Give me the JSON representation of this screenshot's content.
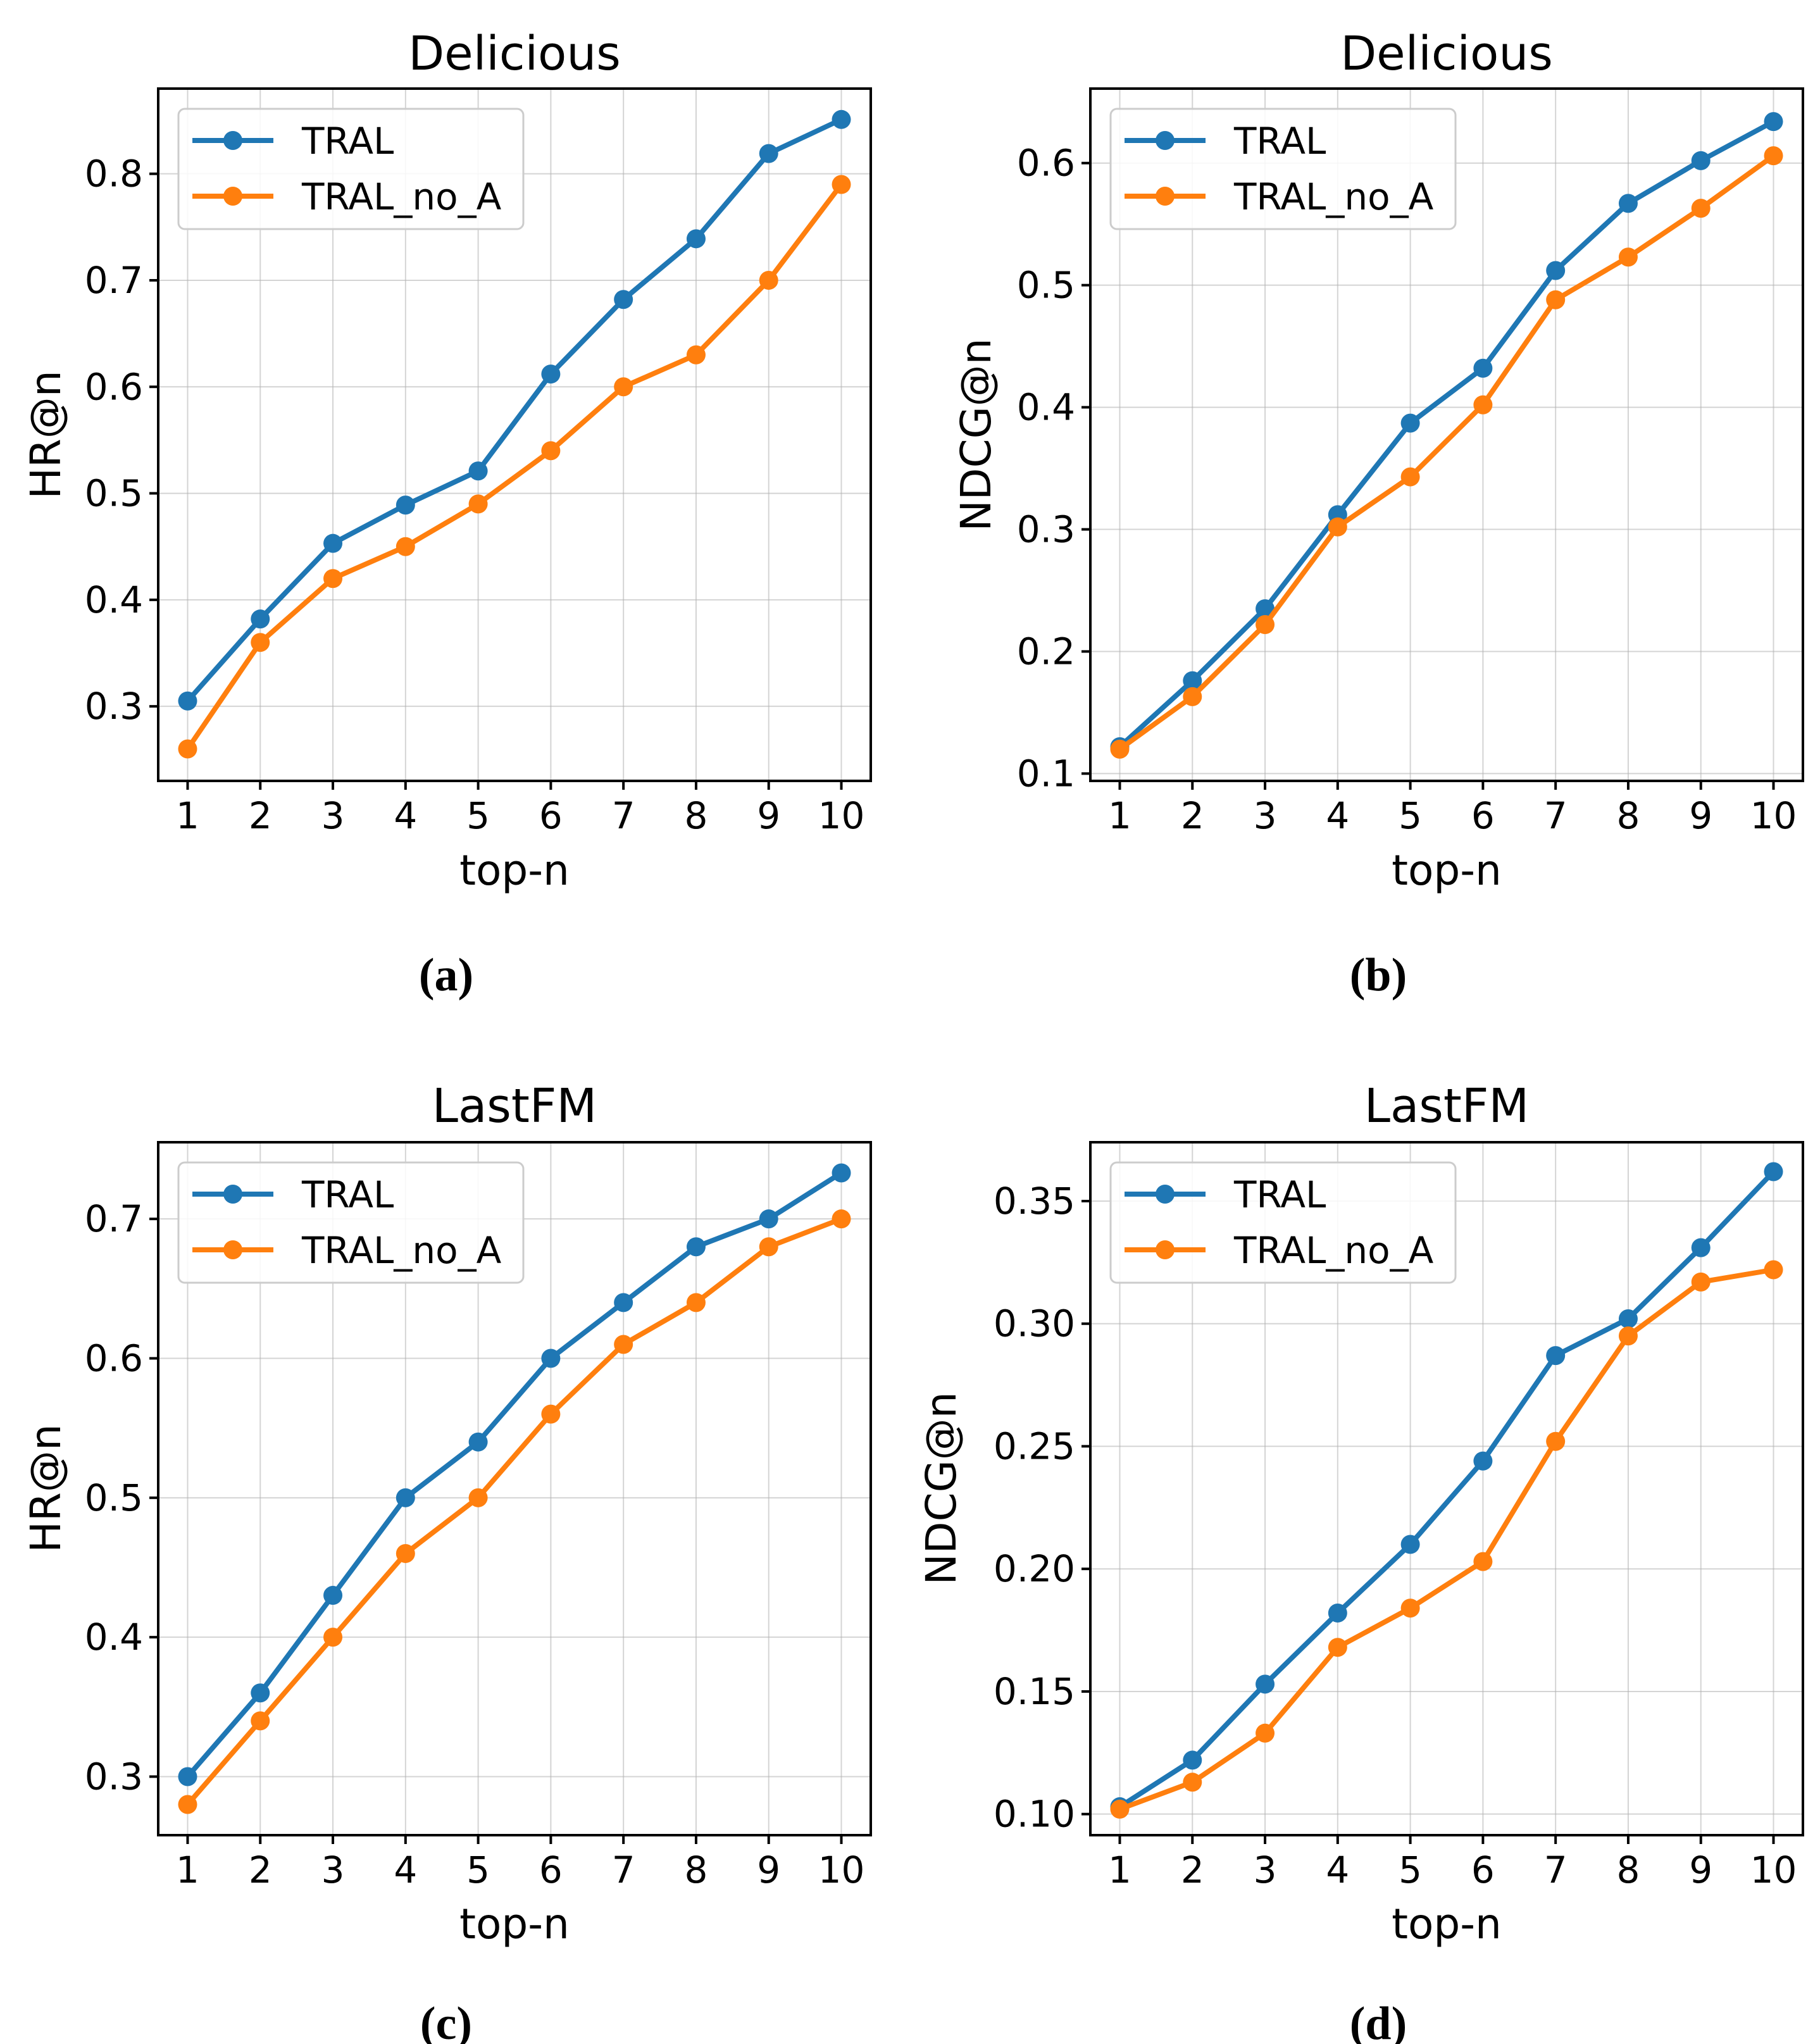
{
  "figure": {
    "colors": {
      "TRAL": "#1f77b4",
      "TRAL_no_A": "#ff7f0e"
    }
  },
  "chart_data": [
    {
      "type": "line",
      "caption": "(a)",
      "title": "Delicious",
      "xlabel": "top-n",
      "ylabel": "HR@n",
      "x": [
        1,
        2,
        3,
        4,
        5,
        6,
        7,
        8,
        9,
        10
      ],
      "xticks": [
        "1",
        "2",
        "3",
        "4",
        "5",
        "6",
        "7",
        "8",
        "9",
        "10"
      ],
      "ylim": [
        0.23,
        0.88
      ],
      "yticks": [
        0.3,
        0.4,
        0.5,
        0.6,
        0.7,
        0.8
      ],
      "ytick_labels": [
        "0.3",
        "0.4",
        "0.5",
        "0.6",
        "0.7",
        "0.8"
      ],
      "grid": true,
      "legend": "top-left",
      "series": [
        {
          "name": "TRAL",
          "values": [
            0.305,
            0.382,
            0.453,
            0.489,
            0.521,
            0.612,
            0.682,
            0.739,
            0.819,
            0.851
          ]
        },
        {
          "name": "TRAL_no_A",
          "values": [
            0.26,
            0.36,
            0.42,
            0.45,
            0.49,
            0.54,
            0.6,
            0.63,
            0.7,
            0.79
          ]
        }
      ]
    },
    {
      "type": "line",
      "caption": "(b)",
      "title": "Delicious",
      "xlabel": "top-n",
      "ylabel": "NDCG@n",
      "x": [
        1,
        2,
        3,
        4,
        5,
        6,
        7,
        8,
        9,
        10
      ],
      "xticks": [
        "1",
        "2",
        "3",
        "4",
        "5",
        "6",
        "7",
        "8",
        "9",
        "10"
      ],
      "ylim": [
        0.094,
        0.661
      ],
      "yticks": [
        0.1,
        0.2,
        0.3,
        0.4,
        0.5,
        0.6
      ],
      "ytick_labels": [
        "0.1",
        "0.2",
        "0.3",
        "0.4",
        "0.5",
        "0.6"
      ],
      "grid": true,
      "legend": "top-left",
      "series": [
        {
          "name": "TRAL",
          "values": [
            0.122,
            0.176,
            0.235,
            0.312,
            0.387,
            0.432,
            0.512,
            0.567,
            0.602,
            0.634
          ]
        },
        {
          "name": "TRAL_no_A",
          "values": [
            0.12,
            0.163,
            0.222,
            0.302,
            0.343,
            0.402,
            0.488,
            0.523,
            0.563,
            0.606
          ]
        }
      ]
    },
    {
      "type": "line",
      "caption": "(c)",
      "title": "LastFM",
      "xlabel": "top-n",
      "ylabel": "HR@n",
      "x": [
        1,
        2,
        3,
        4,
        5,
        6,
        7,
        8,
        9,
        10
      ],
      "xticks": [
        "1",
        "2",
        "3",
        "4",
        "5",
        "6",
        "7",
        "8",
        "9",
        "10"
      ],
      "ylim": [
        0.258,
        0.755
      ],
      "yticks": [
        0.3,
        0.4,
        0.5,
        0.6,
        0.7
      ],
      "ytick_labels": [
        "0.3",
        "0.4",
        "0.5",
        "0.6",
        "0.7"
      ],
      "grid": true,
      "legend": "top-left",
      "series": [
        {
          "name": "TRAL",
          "values": [
            0.3,
            0.36,
            0.43,
            0.5,
            0.54,
            0.6,
            0.64,
            0.68,
            0.7,
            0.733
          ]
        },
        {
          "name": "TRAL_no_A",
          "values": [
            0.28,
            0.34,
            0.4,
            0.46,
            0.5,
            0.56,
            0.61,
            0.64,
            0.68,
            0.7
          ]
        }
      ]
    },
    {
      "type": "line",
      "caption": "(d)",
      "title": "LastFM",
      "xlabel": "top-n",
      "ylabel": "NDCG@n",
      "x": [
        1,
        2,
        3,
        4,
        5,
        6,
        7,
        8,
        9,
        10
      ],
      "xticks": [
        "1",
        "2",
        "3",
        "4",
        "5",
        "6",
        "7",
        "8",
        "9",
        "10"
      ],
      "ylim": [
        0.0914,
        0.374
      ],
      "yticks": [
        0.1,
        0.15,
        0.2,
        0.25,
        0.3,
        0.35
      ],
      "ytick_labels": [
        "0.10",
        "0.15",
        "0.20",
        "0.25",
        "0.30",
        "0.35"
      ],
      "grid": true,
      "legend": "top-left",
      "series": [
        {
          "name": "TRAL",
          "values": [
            0.103,
            0.122,
            0.153,
            0.182,
            0.21,
            0.244,
            0.287,
            0.302,
            0.331,
            0.362
          ]
        },
        {
          "name": "TRAL_no_A",
          "values": [
            0.102,
            0.113,
            0.133,
            0.168,
            0.184,
            0.203,
            0.252,
            0.295,
            0.317,
            0.322
          ]
        }
      ]
    }
  ]
}
